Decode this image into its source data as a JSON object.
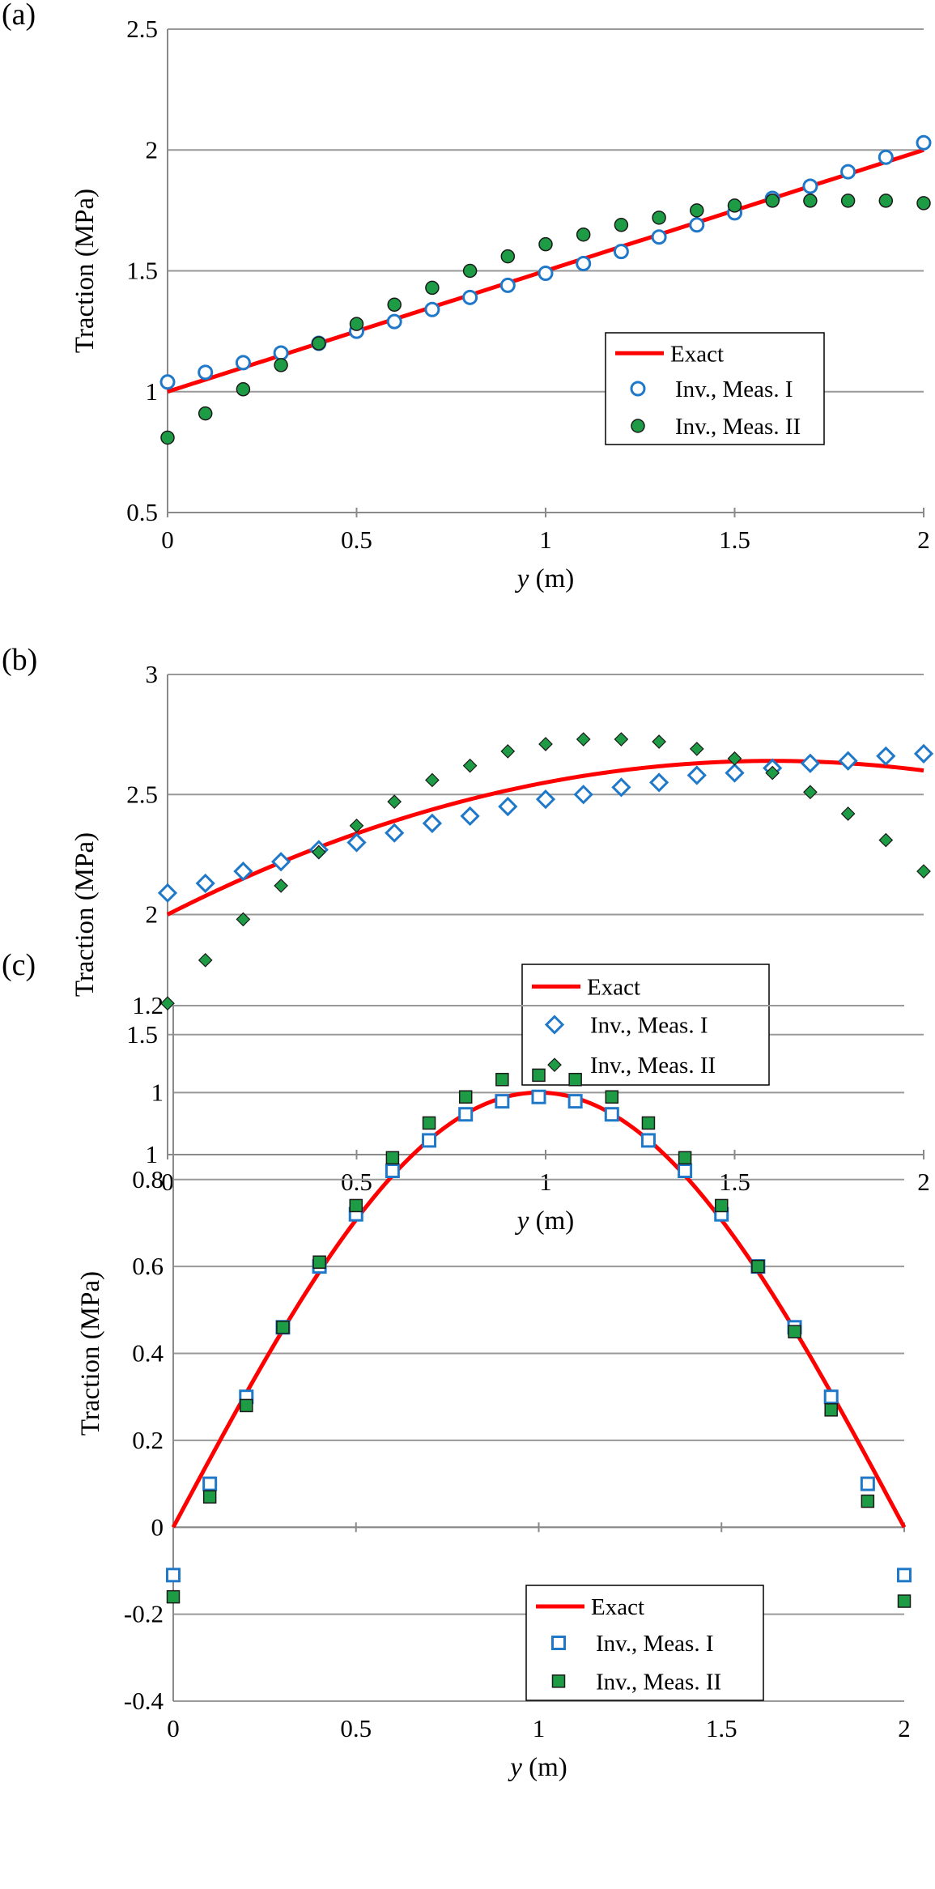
{
  "colors": {
    "exact": "#ff0000",
    "meas1": "#1f78c8",
    "meas2": "#1e9c45",
    "grid": "#999999",
    "axis": "#8a8a8a"
  },
  "chart_data": [
    {
      "panel": "(a)",
      "type": "line+scatter",
      "xlabel_var": "y",
      "xlabel_unit": " (m)",
      "ylabel": "Traction (MPa)",
      "xlim": [
        0,
        2
      ],
      "ylim": [
        0.5,
        2.5
      ],
      "xticks": [
        0,
        0.5,
        1,
        1.5,
        2
      ],
      "xtick_labels": [
        "0",
        "0.5",
        "1",
        "1.5",
        "2"
      ],
      "yticks": [
        0.5,
        1,
        1.5,
        2,
        2.5
      ],
      "ytick_labels": [
        "0.5",
        "1",
        "1.5",
        "2",
        "2.5"
      ],
      "grid": "horizontal",
      "legend_position": "lower-right",
      "exact": {
        "name": "Exact",
        "formula": "1 + 0.5*y"
      },
      "series": [
        {
          "name": "Inv., Meas. I",
          "marker": "circle-open",
          "x": [
            0,
            0.1,
            0.2,
            0.3,
            0.4,
            0.5,
            0.6,
            0.7,
            0.8,
            0.9,
            1,
            1.1,
            1.2,
            1.3,
            1.4,
            1.5,
            1.6,
            1.7,
            1.8,
            1.9,
            2
          ],
          "y": [
            1.04,
            1.08,
            1.12,
            1.16,
            1.2,
            1.25,
            1.29,
            1.34,
            1.39,
            1.44,
            1.49,
            1.53,
            1.58,
            1.64,
            1.69,
            1.74,
            1.8,
            1.85,
            1.91,
            1.97,
            2.03
          ]
        },
        {
          "name": "Inv., Meas. II",
          "marker": "circle-filled",
          "x": [
            0,
            0.1,
            0.2,
            0.3,
            0.4,
            0.5,
            0.6,
            0.7,
            0.8,
            0.9,
            1,
            1.1,
            1.2,
            1.3,
            1.4,
            1.5,
            1.6,
            1.7,
            1.8,
            1.9,
            2
          ],
          "y": [
            0.81,
            0.91,
            1.01,
            1.11,
            1.2,
            1.28,
            1.36,
            1.43,
            1.5,
            1.56,
            1.61,
            1.65,
            1.69,
            1.72,
            1.75,
            1.77,
            1.79,
            1.79,
            1.79,
            1.79,
            1.78
          ]
        }
      ]
    },
    {
      "panel": "(b)",
      "type": "line+scatter",
      "xlabel_var": "y",
      "xlabel_unit": " (m)",
      "ylabel": "Traction (MPa)",
      "xlim": [
        0,
        2
      ],
      "ylim": [
        1,
        3
      ],
      "xticks": [
        0,
        0.5,
        1,
        1.5,
        2
      ],
      "xtick_labels": [
        "0",
        "0.5",
        "1",
        "1.5",
        "2"
      ],
      "yticks": [
        1,
        1.5,
        2,
        2.5,
        3
      ],
      "ytick_labels": [
        "1",
        "1.5",
        "2",
        "2.5",
        "3"
      ],
      "grid": "horizontal",
      "legend_position": "lower-center",
      "exact": {
        "name": "Exact",
        "formula": "2 + 0.8*y - 0.25*y^2"
      },
      "series": [
        {
          "name": "Inv., Meas. I",
          "marker": "diamond-open",
          "x": [
            0,
            0.1,
            0.2,
            0.3,
            0.4,
            0.5,
            0.6,
            0.7,
            0.8,
            0.9,
            1,
            1.1,
            1.2,
            1.3,
            1.4,
            1.5,
            1.6,
            1.7,
            1.8,
            1.9,
            2
          ],
          "y": [
            2.09,
            2.13,
            2.18,
            2.22,
            2.27,
            2.3,
            2.34,
            2.38,
            2.41,
            2.45,
            2.48,
            2.5,
            2.53,
            2.55,
            2.58,
            2.59,
            2.61,
            2.63,
            2.64,
            2.66,
            2.67
          ]
        },
        {
          "name": "Inv., Meas. II",
          "marker": "diamond-filled",
          "x": [
            0,
            0.1,
            0.2,
            0.3,
            0.4,
            0.5,
            0.6,
            0.7,
            0.8,
            0.9,
            1,
            1.1,
            1.2,
            1.3,
            1.4,
            1.5,
            1.6,
            1.7,
            1.8,
            1.9,
            2
          ],
          "y": [
            1.63,
            1.81,
            1.98,
            2.12,
            2.26,
            2.37,
            2.47,
            2.56,
            2.62,
            2.68,
            2.71,
            2.73,
            2.73,
            2.72,
            2.69,
            2.65,
            2.59,
            2.51,
            2.42,
            2.31,
            2.18
          ]
        }
      ]
    },
    {
      "panel": "(c)",
      "type": "line+scatter",
      "xlabel_var": "y",
      "xlabel_unit": " (m)",
      "ylabel": "Traction (MPa)",
      "xlim": [
        0,
        2
      ],
      "ylim": [
        -0.4,
        1.2
      ],
      "xticks": [
        0,
        0.5,
        1,
        1.5,
        2
      ],
      "xtick_labels": [
        "0",
        "0.5",
        "1",
        "1.5",
        "2"
      ],
      "yticks": [
        -0.4,
        -0.2,
        0,
        0.2,
        0.4,
        0.6,
        0.8,
        1,
        1.2
      ],
      "ytick_labels": [
        "-0.4",
        "-0.2",
        "0",
        "0.2",
        "0.4",
        "0.6",
        "0.8",
        "1",
        "1.2"
      ],
      "grid": "horizontal",
      "legend_position": "lower-right",
      "exact": {
        "name": "Exact",
        "formula": "sin(pi*y/2)"
      },
      "series": [
        {
          "name": "Inv., Meas. I",
          "marker": "square-open",
          "x": [
            0,
            0.1,
            0.2,
            0.3,
            0.4,
            0.5,
            0.6,
            0.7,
            0.8,
            0.9,
            1,
            1.1,
            1.2,
            1.3,
            1.4,
            1.5,
            1.6,
            1.7,
            1.8,
            1.9,
            2
          ],
          "y": [
            -0.11,
            0.1,
            0.3,
            0.46,
            0.6,
            0.72,
            0.82,
            0.89,
            0.95,
            0.98,
            0.99,
            0.98,
            0.95,
            0.89,
            0.82,
            0.72,
            0.6,
            0.46,
            0.3,
            0.1,
            -0.11
          ]
        },
        {
          "name": "Inv., Meas. II",
          "marker": "square-filled",
          "x": [
            0,
            0.1,
            0.2,
            0.3,
            0.4,
            0.5,
            0.6,
            0.7,
            0.8,
            0.9,
            1,
            1.1,
            1.2,
            1.3,
            1.4,
            1.5,
            1.6,
            1.7,
            1.8,
            1.9,
            2
          ],
          "y": [
            -0.16,
            0.07,
            0.28,
            0.46,
            0.61,
            0.74,
            0.85,
            0.93,
            0.99,
            1.03,
            1.04,
            1.03,
            0.99,
            0.93,
            0.85,
            0.74,
            0.6,
            0.45,
            0.27,
            0.06,
            -0.17
          ]
        }
      ]
    }
  ]
}
